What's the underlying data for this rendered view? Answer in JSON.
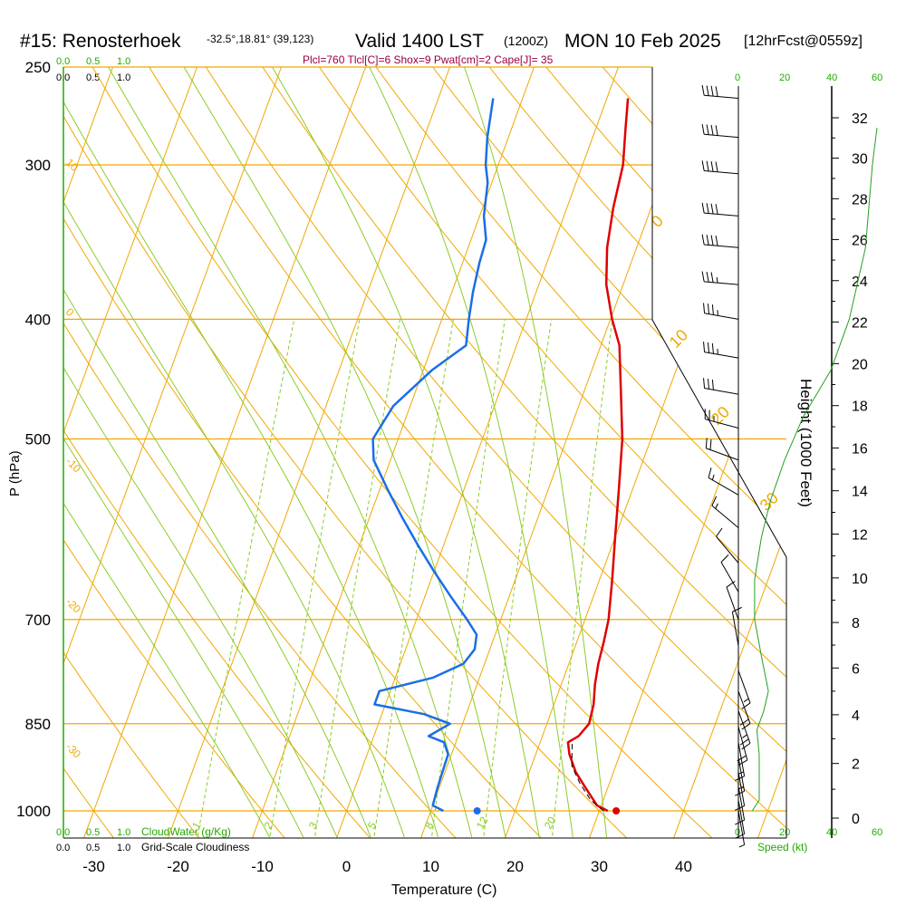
{
  "header": {
    "station": "#15: Renosterhoek",
    "coords": "-32.5°,18.81° (39,123)",
    "valid": "Valid 1400 LST",
    "zulu": "(1200Z)",
    "date": "MON 10 Feb 2025",
    "forecast": "[12hrFcst@0559z]",
    "indices": "Plcl=760 Tlcl[C]=6 Shox=9 Pwat[cm]=2 Cape[J]= 35"
  },
  "left_scales": {
    "cloud_water_top": [
      "0.0",
      "0.5",
      "1.0"
    ],
    "cloudiness_top": [
      "0.0",
      "0.5",
      "1.0"
    ],
    "cloud_water_bottom": [
      "0.0",
      "0.5",
      "1.0"
    ],
    "cloudiness_bottom": [
      "0.0",
      "0.5",
      "1.0"
    ],
    "cloud_water_label": "CloudWater (g/Kg)",
    "cloudiness_label": "Grid-Scale Cloudiness"
  },
  "wind_axis": {
    "ticks_top": [
      "0",
      "20",
      "40",
      "60"
    ],
    "ticks_bottom": [
      "0",
      "20",
      "40",
      "60"
    ],
    "label": "Speed (kt)"
  },
  "colors": {
    "isotherm": "#f0a800",
    "dry_adiabat": "#8ccc2a",
    "moist_adiabat": "#9ad03a",
    "mixing_ratio": "#88cc22",
    "temperature": "#e00000",
    "dewpoint": "#1a6ee8",
    "height_axis": "#000000",
    "wind_profile": "#22a022",
    "green_label": "#22aa00",
    "title_magenta": "#990044"
  },
  "chart_data": {
    "type": "line",
    "title": "#15: Renosterhoek",
    "xlabel": "Temperature (C)",
    "ylabel": "P (hPa)",
    "y2label": "Height (1000 Feet)",
    "x_ticks": [
      "-30",
      "-20",
      "-10",
      "0",
      "10",
      "20",
      "30",
      "40"
    ],
    "pressure_ticks": [
      "250",
      "300",
      "400",
      "500",
      "700",
      "850",
      "1000"
    ],
    "height_ticks": [
      "0",
      "2",
      "4",
      "6",
      "8",
      "10",
      "12",
      "14",
      "16",
      "18",
      "20",
      "22",
      "24",
      "26",
      "28",
      "30",
      "32"
    ],
    "xlim": [
      -34,
      46
    ],
    "ylim": [
      1000,
      250
    ],
    "isotherm_labels": [
      {
        "text": "10",
        "t": 10
      },
      {
        "text": "0",
        "t": 0
      },
      {
        "text": "-10",
        "t": -10
      },
      {
        "text": "-20",
        "t": -20
      },
      {
        "text": "-30",
        "t": -30
      },
      {
        "text": "0",
        "t": 0
      },
      {
        "text": "10",
        "t": 10
      },
      {
        "text": "20",
        "t": 20
      },
      {
        "text": "30",
        "t": 30
      }
    ],
    "mixing_ratio_labels": [
      "1",
      "2",
      "3",
      "5",
      "8",
      "12",
      "20"
    ],
    "series": [
      {
        "name": "Temperature",
        "points": [
          [
            31.0,
            1000
          ],
          [
            29.5,
            990
          ],
          [
            27.5,
            960
          ],
          [
            25.5,
            930
          ],
          [
            24.0,
            900
          ],
          [
            23.3,
            880
          ],
          [
            24.3,
            870
          ],
          [
            25.0,
            850
          ],
          [
            24.7,
            820
          ],
          [
            24.0,
            790
          ],
          [
            23.5,
            760
          ],
          [
            23.2,
            730
          ],
          [
            22.8,
            700
          ],
          [
            21.5,
            650
          ],
          [
            20.0,
            600
          ],
          [
            18.4,
            550
          ],
          [
            16.6,
            500
          ],
          [
            14.5,
            460
          ],
          [
            12.2,
            420
          ],
          [
            10.2,
            400
          ],
          [
            8.0,
            375
          ],
          [
            6.5,
            350
          ],
          [
            5.5,
            325
          ],
          [
            4.8,
            300
          ],
          [
            3.5,
            280
          ],
          [
            2.5,
            265
          ]
        ]
      },
      {
        "name": "Dewpoint",
        "points": [
          [
            11.5,
            1000
          ],
          [
            10.0,
            990
          ],
          [
            9.8,
            960
          ],
          [
            9.7,
            930
          ],
          [
            9.6,
            900
          ],
          [
            8.6,
            880
          ],
          [
            6.5,
            870
          ],
          [
            8.5,
            850
          ],
          [
            5.0,
            835
          ],
          [
            -1.3,
            820
          ],
          [
            -1.3,
            800
          ],
          [
            4.5,
            780
          ],
          [
            7.5,
            760
          ],
          [
            8.2,
            740
          ],
          [
            7.8,
            720
          ],
          [
            6.0,
            700
          ],
          [
            3.0,
            670
          ],
          [
            0.0,
            640
          ],
          [
            -3.0,
            610
          ],
          [
            -6.0,
            580
          ],
          [
            -9.0,
            550
          ],
          [
            -12.0,
            520
          ],
          [
            -13.0,
            500
          ],
          [
            -12.0,
            470
          ],
          [
            -9.0,
            440
          ],
          [
            -6.0,
            420
          ],
          [
            -6.8,
            400
          ],
          [
            -7.5,
            380
          ],
          [
            -8.0,
            360
          ],
          [
            -8.2,
            345
          ],
          [
            -9.5,
            330
          ],
          [
            -10.5,
            310
          ],
          [
            -11.5,
            300
          ],
          [
            -12.5,
            285
          ],
          [
            -13.5,
            265
          ]
        ]
      },
      {
        "name": "Parcel",
        "points": [
          [
            30.5,
            1000
          ],
          [
            28.5,
            980
          ],
          [
            26.5,
            950
          ],
          [
            24.8,
            920
          ],
          [
            23.8,
            880
          ]
        ]
      }
    ],
    "surface_temperature": 32,
    "surface_dewpoint": 15.5,
    "wind_barbs": [
      {
        "p": 265,
        "dir": 275,
        "speed": 40
      },
      {
        "p": 285,
        "dir": 275,
        "speed": 40
      },
      {
        "p": 305,
        "dir": 275,
        "speed": 40
      },
      {
        "p": 330,
        "dir": 275,
        "speed": 40
      },
      {
        "p": 350,
        "dir": 275,
        "speed": 40
      },
      {
        "p": 375,
        "dir": 275,
        "speed": 35
      },
      {
        "p": 400,
        "dir": 280,
        "speed": 35
      },
      {
        "p": 430,
        "dir": 280,
        "speed": 35
      },
      {
        "p": 460,
        "dir": 280,
        "speed": 30
      },
      {
        "p": 490,
        "dir": 285,
        "speed": 25
      },
      {
        "p": 520,
        "dir": 290,
        "speed": 20
      },
      {
        "p": 555,
        "dir": 300,
        "speed": 15
      },
      {
        "p": 590,
        "dir": 310,
        "speed": 15
      },
      {
        "p": 630,
        "dir": 320,
        "speed": 10
      },
      {
        "p": 665,
        "dir": 330,
        "speed": 10
      },
      {
        "p": 700,
        "dir": 340,
        "speed": 10
      },
      {
        "p": 735,
        "dir": 350,
        "speed": 10
      },
      {
        "p": 770,
        "dir": 160,
        "speed": 15
      },
      {
        "p": 800,
        "dir": 160,
        "speed": 20
      },
      {
        "p": 830,
        "dir": 160,
        "speed": 25
      },
      {
        "p": 855,
        "dir": 165,
        "speed": 20
      },
      {
        "p": 880,
        "dir": 170,
        "speed": 15
      },
      {
        "p": 905,
        "dir": 170,
        "speed": 15
      },
      {
        "p": 930,
        "dir": 170,
        "speed": 10
      },
      {
        "p": 955,
        "dir": 170,
        "speed": 10
      },
      {
        "p": 980,
        "dir": 170,
        "speed": 10
      },
      {
        "p": 1000,
        "dir": 170,
        "speed": 5
      }
    ],
    "wind_speed_profile": [
      [
        6,
        1000
      ],
      [
        9,
        980
      ],
      [
        9,
        900
      ],
      [
        8,
        860
      ],
      [
        11,
        830
      ],
      [
        13,
        800
      ],
      [
        10,
        750
      ],
      [
        7,
        700
      ],
      [
        7,
        650
      ],
      [
        10,
        600
      ],
      [
        14,
        560
      ],
      [
        20,
        520
      ],
      [
        28,
        480
      ],
      [
        40,
        440
      ],
      [
        48,
        400
      ],
      [
        55,
        350
      ],
      [
        58,
        300
      ],
      [
        60,
        280
      ]
    ]
  }
}
